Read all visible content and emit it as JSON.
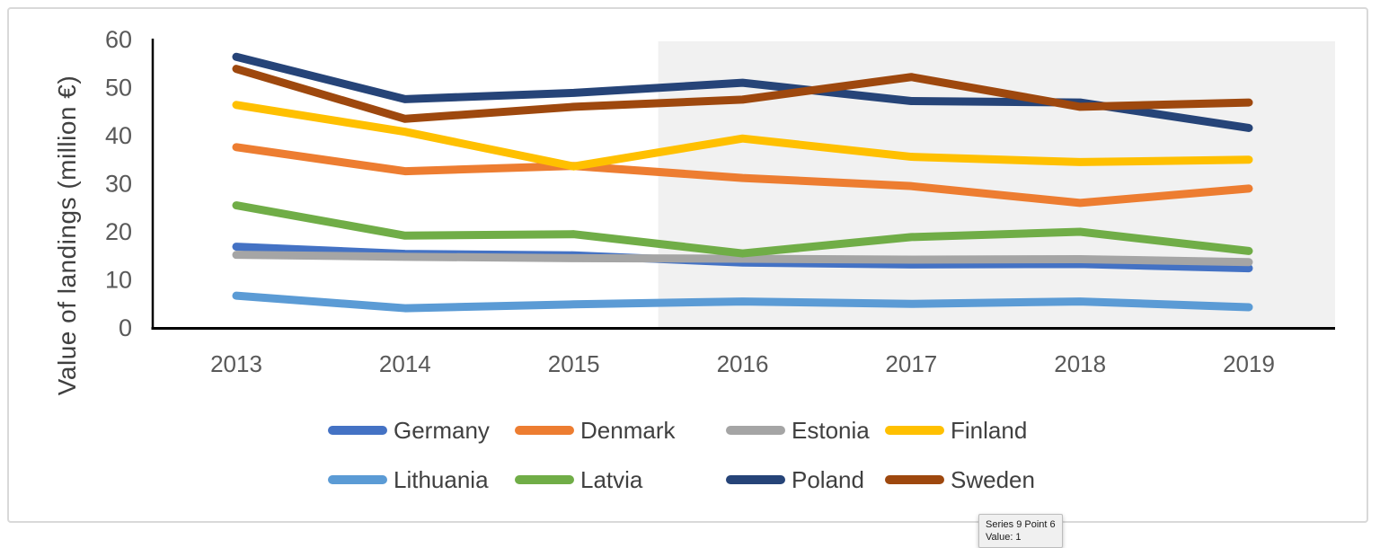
{
  "tooltip": {
    "line1": "Series 9 Point 6",
    "line2": "Value: 1"
  },
  "legend": {
    "rows": [
      [
        "Germany",
        "Denmark",
        "Estonia",
        "Finland"
      ],
      [
        "Lithuania",
        "Latvia",
        "Poland",
        "Sweden"
      ]
    ]
  },
  "chart_data": {
    "type": "line",
    "title": "",
    "xlabel": "",
    "ylabel": "Value of landings (million  €)",
    "categories": [
      "2013",
      "2014",
      "2015",
      "2016",
      "2017",
      "2018",
      "2019"
    ],
    "yticks": [
      0,
      10,
      20,
      30,
      40,
      50,
      60
    ],
    "ylim": [
      0,
      60
    ],
    "grid": false,
    "legend_position": "bottom",
    "axis_color": "#000000",
    "tick_label_color": "#595959",
    "highlight_region": {
      "from_category_index": 2.5,
      "to": "plot-right-edge",
      "color": "#f1f1f1"
    },
    "series": [
      {
        "name": "Germany",
        "color": "#4472C4",
        "values": [
          16.9,
          15.4,
          15.1,
          13.6,
          13.2,
          13.3,
          12.4
        ]
      },
      {
        "name": "Denmark",
        "color": "#ED7D31",
        "values": [
          37.6,
          32.6,
          33.7,
          31.2,
          29.5,
          26.0,
          29.0
        ]
      },
      {
        "name": "Estonia",
        "color": "#A5A5A5",
        "values": [
          15.2,
          14.8,
          14.5,
          14.4,
          14.2,
          14.3,
          13.7
        ]
      },
      {
        "name": "Finland",
        "color": "#FFC000",
        "values": [
          46.4,
          40.8,
          33.6,
          39.4,
          35.6,
          34.5,
          35.0
        ]
      },
      {
        "name": "Lithuania",
        "color": "#5B9BD5",
        "values": [
          6.7,
          4.1,
          4.9,
          5.5,
          5.0,
          5.5,
          4.3
        ]
      },
      {
        "name": "Latvia",
        "color": "#70AD47",
        "values": [
          25.5,
          19.2,
          19.5,
          15.5,
          18.9,
          20.0,
          16.0
        ]
      },
      {
        "name": "Poland",
        "color": "#264478",
        "values": [
          56.4,
          47.6,
          48.9,
          51.0,
          47.2,
          46.9,
          41.6
        ]
      },
      {
        "name": "Sweden",
        "color": "#9E480E",
        "values": [
          53.9,
          43.5,
          46.0,
          47.5,
          52.2,
          46.0,
          46.9
        ]
      }
    ]
  }
}
